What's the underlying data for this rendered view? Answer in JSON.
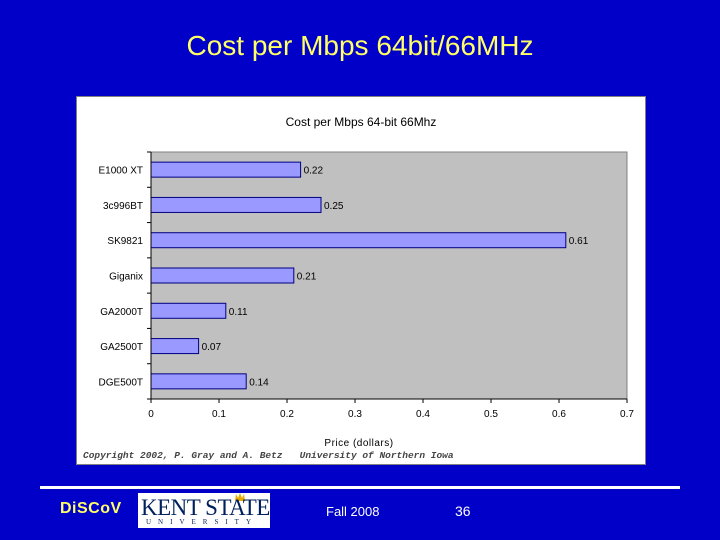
{
  "slide": {
    "title": "Cost per Mbps 64bit/66MHz",
    "footer_left": "DiSCoV",
    "logo_text": "KENT STATE",
    "logo_subtext": "UNIVERSITY",
    "date": "Fall 2008",
    "page_number": "36"
  },
  "colors": {
    "background": "#0000c8",
    "title": "#ffff66",
    "bar_fill": "#9999ff",
    "plot_area": "#c0c0c0"
  },
  "chart_data": {
    "type": "bar",
    "orientation": "horizontal",
    "title": "Cost per Mbps 64-bit 66Mhz",
    "xlabel": "Price (dollars)",
    "ylabel": "",
    "categories": [
      "E1000 XT",
      "3c996BT",
      "SK9821",
      "Giganix",
      "GA2000T",
      "GA2500T",
      "DGE500T"
    ],
    "values": [
      0.22,
      0.25,
      0.61,
      0.21,
      0.11,
      0.07,
      0.14
    ],
    "data_labels": [
      "0.22",
      "0.25",
      "0.61",
      "0.21",
      "0.11",
      "0.07",
      "0.14"
    ],
    "xlim": [
      0,
      0.7
    ],
    "xticks": [
      "0",
      "0.1",
      "0.2",
      "0.3",
      "0.4",
      "0.5",
      "0.6",
      "0.7"
    ],
    "grid": false,
    "legend": "none",
    "annotation": "Copyright 2002, P. Gray and A. Betz   University of Northern Iowa"
  }
}
